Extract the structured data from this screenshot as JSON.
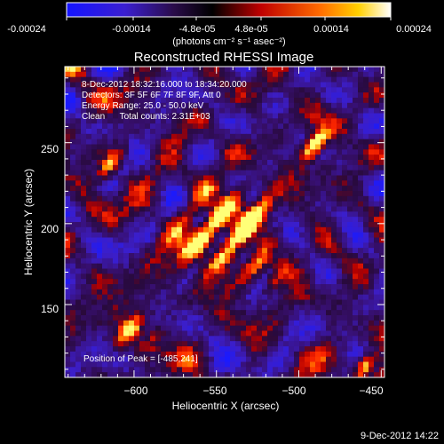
{
  "figure": {
    "title": "Reconstructed RHESSI Image",
    "colorbar": {
      "ticks": [
        "-0.00024",
        "-0.00014",
        "-4.8e-05",
        "4.8e-05",
        "0.00014",
        "0.00024"
      ],
      "units_label": "(photons cm⁻² s⁻¹ asec⁻²)",
      "range": [
        -0.00024,
        0.00024
      ],
      "colors": [
        "#1a1aff",
        "#6b1fa8",
        "#000000",
        "#c00000",
        "#ff6a00",
        "#ffffff"
      ]
    },
    "axes": {
      "xlabel": "Heliocentric X (arcsec)",
      "ylabel": "Heliocentric Y (arcsec)",
      "xlim": [
        -642,
        -448
      ],
      "ylim": [
        105,
        297
      ],
      "xticks": [
        -600,
        -550,
        -500,
        -450
      ],
      "yticks": [
        150,
        200,
        250
      ],
      "xtick_labels": [
        "−600",
        "−550",
        "−500",
        "−450"
      ],
      "ytick_labels": [
        "150",
        "200",
        "250"
      ]
    },
    "annotations": {
      "time_range": "8-Dec-2012 18:32:16.000 to 18:34:20.000",
      "detectors": "Detectors: 3F 5F 6F 7F 8F 9F, Att 0",
      "energy_range": "Energy Range: 25.0 - 50.0 keV",
      "clean_line": "Clean      Total counts: 2.31E+03",
      "peak_position": "Position of Peak = [-485,241]"
    },
    "footer_timestamp": "9-Dec-2012 14:22"
  }
}
